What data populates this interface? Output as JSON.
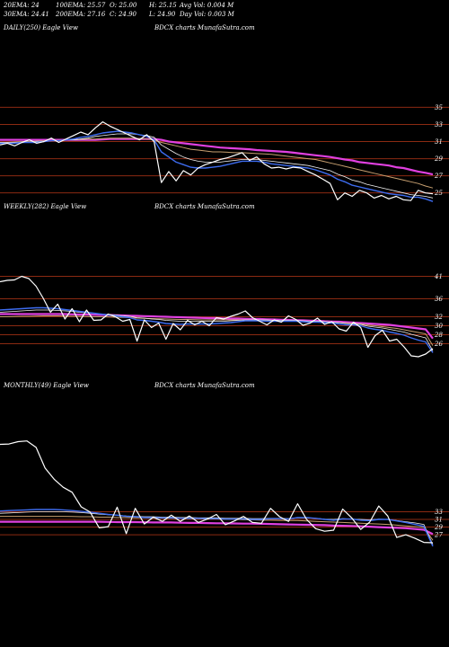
{
  "header": {
    "ema20": "20EMA: 24",
    "ema30": "30EMA: 24.41",
    "ema100": "100EMA: 25.57",
    "ema200": "200EMA: 27.16",
    "open": "O: 25.00",
    "close": "C: 24.90",
    "high": "H: 25.15",
    "low": "L: 24.90",
    "avg_vol": "Avg Vol: 0.004  M",
    "day_vol": "Day Vol: 0.003 M"
  },
  "colors": {
    "background": "#000000",
    "price": "#ffffff",
    "gridline": "#8b2a12",
    "ema_fast": "#3d6cf0",
    "ema_slow": "#e040e0",
    "ema_mid": "#f2f2f2",
    "ema_tan": "#c8a070"
  },
  "chart_data": [
    {
      "type": "line",
      "title": "DAILY(250) Eagle  View",
      "center_label": "BDCX  charts MunafaSutra.com",
      "y_ticks": [
        35,
        33,
        31,
        29,
        27,
        25
      ],
      "ylim": [
        23.6,
        36.2
      ],
      "grid": true,
      "series": [
        {
          "role": "price",
          "values": [
            30.6,
            30.8,
            30.5,
            30.9,
            31.2,
            30.8,
            31.0,
            31.4,
            30.9,
            31.3,
            31.7,
            32.1,
            31.8,
            32.6,
            33.3,
            32.8,
            32.4,
            32.0,
            31.6,
            31.2,
            31.8,
            31.0,
            26.2,
            27.5,
            26.4,
            27.6,
            27.1,
            27.9,
            28.3,
            28.6,
            28.9,
            29.1,
            29.4,
            29.7,
            28.8,
            29.2,
            28.4,
            27.9,
            28.0,
            27.8,
            28.0,
            27.9,
            27.5,
            27.1,
            26.6,
            26.1,
            24.2,
            25.0,
            24.6,
            25.3,
            25.0,
            24.4,
            24.7,
            24.3,
            24.6,
            24.2,
            24.1,
            25.3,
            25.0,
            24.9
          ]
        },
        {
          "role": "ema20",
          "values": [
            30.8,
            30.8,
            30.8,
            30.9,
            30.9,
            30.9,
            31.0,
            31.1,
            31.1,
            31.2,
            31.3,
            31.5,
            31.6,
            31.8,
            32.0,
            32.1,
            32.2,
            32.1,
            32.0,
            31.8,
            31.6,
            31.2,
            29.8,
            29.2,
            28.6,
            28.3,
            28.0,
            27.9,
            27.9,
            28.0,
            28.1,
            28.3,
            28.5,
            28.7,
            28.7,
            28.7,
            28.6,
            28.4,
            28.3,
            28.2,
            28.1,
            28.0,
            27.9,
            27.7,
            27.4,
            27.1,
            26.6,
            26.3,
            25.9,
            25.7,
            25.5,
            25.3,
            25.1,
            24.9,
            24.8,
            24.7,
            24.5,
            24.5,
            24.3,
            24.0
          ]
        },
        {
          "role": "ema30",
          "values": [
            30.9,
            30.9,
            30.9,
            30.9,
            30.9,
            31.0,
            31.0,
            31.1,
            31.1,
            31.2,
            31.2,
            31.3,
            31.4,
            31.6,
            31.7,
            31.8,
            31.9,
            31.9,
            31.9,
            31.8,
            31.7,
            31.5,
            30.6,
            30.1,
            29.6,
            29.2,
            28.9,
            28.7,
            28.6,
            28.6,
            28.6,
            28.7,
            28.8,
            28.9,
            28.9,
            28.9,
            28.8,
            28.7,
            28.6,
            28.5,
            28.4,
            28.3,
            28.2,
            28.0,
            27.8,
            27.6,
            27.2,
            26.9,
            26.5,
            26.3,
            26.0,
            25.8,
            25.6,
            25.4,
            25.2,
            25.0,
            24.8,
            24.7,
            24.6,
            24.41
          ]
        },
        {
          "role": "ema100",
          "values": [
            30.9,
            30.9,
            30.95,
            31.0,
            31.0,
            31.05,
            31.1,
            31.1,
            31.15,
            31.2,
            31.2,
            31.25,
            31.3,
            31.3,
            31.35,
            31.4,
            31.4,
            31.4,
            31.4,
            31.35,
            31.3,
            31.2,
            30.9,
            30.7,
            30.5,
            30.3,
            30.1,
            30.0,
            29.9,
            29.8,
            29.8,
            29.75,
            29.7,
            29.7,
            29.65,
            29.6,
            29.55,
            29.5,
            29.4,
            29.3,
            29.2,
            29.1,
            29.0,
            28.9,
            28.7,
            28.5,
            28.3,
            28.1,
            27.9,
            27.7,
            27.5,
            27.3,
            27.1,
            26.9,
            26.7,
            26.5,
            26.3,
            26.1,
            25.8,
            25.57
          ]
        },
        {
          "role": "ema200",
          "values": [
            31.2,
            31.2,
            31.2,
            31.2,
            31.2,
            31.2,
            31.2,
            31.2,
            31.2,
            31.2,
            31.2,
            31.2,
            31.2,
            31.2,
            31.25,
            31.3,
            31.3,
            31.3,
            31.3,
            31.3,
            31.3,
            31.3,
            31.2,
            31.0,
            30.9,
            30.8,
            30.7,
            30.6,
            30.5,
            30.4,
            30.3,
            30.25,
            30.2,
            30.15,
            30.1,
            30.0,
            29.95,
            29.9,
            29.85,
            29.8,
            29.7,
            29.6,
            29.5,
            29.4,
            29.3,
            29.2,
            29.05,
            28.9,
            28.8,
            28.6,
            28.5,
            28.4,
            28.3,
            28.2,
            28.0,
            27.9,
            27.7,
            27.5,
            27.35,
            27.16
          ]
        }
      ]
    },
    {
      "type": "line",
      "title": "WEEKLY(282) Eagle  View",
      "center_label": "BDCX  charts MunafaSutra.com",
      "y_ticks": [
        41,
        36,
        32,
        30,
        28,
        26
      ],
      "ylim": [
        21.5,
        44.5
      ],
      "grid": true,
      "series": [
        {
          "role": "price",
          "values": [
            39.8,
            40.1,
            40.2,
            41.0,
            40.5,
            38.8,
            36.1,
            33.0,
            34.8,
            31.5,
            33.8,
            30.9,
            33.5,
            31.2,
            31.3,
            32.6,
            32.0,
            31.0,
            31.4,
            26.6,
            31.3,
            29.6,
            30.6,
            27.0,
            30.5,
            29.1,
            31.2,
            30.2,
            31.0,
            30.0,
            31.8,
            31.5,
            32.1,
            32.6,
            33.3,
            31.8,
            31.0,
            30.2,
            31.3,
            30.8,
            32.2,
            31.4,
            30.1,
            30.6,
            31.7,
            30.3,
            30.9,
            29.3,
            28.8,
            30.8,
            29.6,
            25.2,
            27.8,
            29.0,
            26.6,
            27.0,
            25.3,
            23.3,
            23.1,
            23.7,
            24.9
          ]
        },
        {
          "role": "ema20",
          "values": [
            33.5,
            33.6,
            33.7,
            33.8,
            33.9,
            34.0,
            34.0,
            33.9,
            33.8,
            33.6,
            33.4,
            33.2,
            33.0,
            32.8,
            32.6,
            32.4,
            32.2,
            32.0,
            31.8,
            31.3,
            31.2,
            31.0,
            30.8,
            30.5,
            30.4,
            30.3,
            30.4,
            30.4,
            30.4,
            30.4,
            30.5,
            30.6,
            30.7,
            30.9,
            31.1,
            31.1,
            31.1,
            31.0,
            31.0,
            31.0,
            31.0,
            31.0,
            30.9,
            30.8,
            30.8,
            30.7,
            30.6,
            30.4,
            30.2,
            30.2,
            30.0,
            29.5,
            29.2,
            29.0,
            28.6,
            28.3,
            27.9,
            27.3,
            26.8,
            26.4,
            24.0
          ]
        },
        {
          "role": "ema30",
          "values": [
            33.0,
            33.1,
            33.2,
            33.3,
            33.4,
            33.5,
            33.5,
            33.5,
            33.4,
            33.3,
            33.2,
            33.0,
            32.9,
            32.8,
            32.6,
            32.5,
            32.4,
            32.2,
            32.1,
            31.8,
            31.7,
            31.5,
            31.4,
            31.2,
            31.1,
            31.0,
            31.0,
            31.0,
            31.0,
            31.0,
            31.0,
            31.0,
            31.1,
            31.2,
            31.3,
            31.3,
            31.3,
            31.3,
            31.2,
            31.2,
            31.2,
            31.2,
            31.1,
            31.0,
            31.0,
            30.9,
            30.8,
            30.7,
            30.5,
            30.4,
            30.3,
            29.9,
            29.7,
            29.5,
            29.2,
            28.9,
            28.6,
            28.1,
            27.7,
            27.3,
            24.41
          ]
        },
        {
          "role": "ema100",
          "values": [
            32.0,
            32.0,
            32.05,
            32.1,
            32.1,
            32.15,
            32.2,
            32.2,
            32.2,
            32.15,
            32.1,
            32.1,
            32.05,
            32.0,
            32.0,
            31.95,
            31.9,
            31.85,
            31.8,
            31.7,
            31.65,
            31.6,
            31.55,
            31.5,
            31.45,
            31.4,
            31.4,
            31.35,
            31.3,
            31.3,
            31.3,
            31.3,
            31.3,
            31.3,
            31.3,
            31.3,
            31.25,
            31.2,
            31.2,
            31.15,
            31.1,
            31.1,
            31.05,
            31.0,
            30.95,
            30.9,
            30.8,
            30.7,
            30.6,
            30.5,
            30.4,
            30.2,
            30.0,
            29.8,
            29.6,
            29.4,
            29.1,
            28.8,
            28.5,
            28.2,
            25.57
          ]
        },
        {
          "role": "ema200",
          "values": [
            32.6,
            32.6,
            32.6,
            32.6,
            32.6,
            32.6,
            32.6,
            32.6,
            32.6,
            32.6,
            32.55,
            32.5,
            32.5,
            32.45,
            32.4,
            32.4,
            32.35,
            32.3,
            32.25,
            32.2,
            32.15,
            32.1,
            32.05,
            32.0,
            31.95,
            31.9,
            31.85,
            31.8,
            31.75,
            31.7,
            31.7,
            31.65,
            31.6,
            31.6,
            31.55,
            31.5,
            31.5,
            31.45,
            31.4,
            31.35,
            31.3,
            31.25,
            31.2,
            31.15,
            31.1,
            31.0,
            30.95,
            30.9,
            30.8,
            30.7,
            30.6,
            30.5,
            30.4,
            30.3,
            30.2,
            30.0,
            29.8,
            29.6,
            29.4,
            29.2,
            27.16
          ]
        }
      ]
    },
    {
      "type": "line",
      "title": "MONTHLY(49) Eagle  View",
      "center_label": "BDCX  charts MunafaSutra.com",
      "y_ticks": [
        33,
        31,
        29,
        27
      ],
      "ylim": [
        23.5,
        54.0
      ],
      "grid": true,
      "series": [
        {
          "role": "price",
          "values": [
            50.6,
            50.7,
            51.3,
            51.5,
            49.8,
            44.4,
            41.5,
            39.4,
            38.1,
            34.3,
            32.9,
            28.8,
            29.1,
            34.2,
            27.3,
            33.9,
            29.8,
            31.6,
            30.5,
            32.1,
            30.5,
            31.9,
            30.2,
            31.1,
            32.3,
            29.6,
            30.6,
            31.8,
            30.2,
            30.0,
            33.9,
            31.7,
            30.5,
            35.1,
            31.0,
            28.6,
            27.9,
            28.2,
            33.7,
            31.4,
            28.4,
            30.3,
            34.5,
            31.9,
            26.3,
            27.0,
            26.1,
            25.0,
            24.9
          ]
        },
        {
          "role": "ema20",
          "values": [
            33.2,
            33.3,
            33.4,
            33.5,
            33.6,
            33.6,
            33.6,
            33.5,
            33.3,
            33.1,
            32.9,
            32.6,
            32.3,
            32.1,
            31.8,
            31.7,
            31.5,
            31.5,
            31.4,
            31.4,
            31.3,
            31.3,
            31.3,
            31.2,
            31.2,
            31.1,
            31.1,
            31.1,
            31.0,
            31.0,
            31.2,
            31.2,
            31.1,
            31.5,
            31.5,
            31.3,
            31.0,
            30.8,
            31.1,
            31.1,
            30.8,
            30.7,
            31.0,
            31.0,
            30.6,
            30.2,
            29.7,
            29.2,
            24.0
          ]
        },
        {
          "role": "ema30",
          "values": [
            32.6,
            32.7,
            32.8,
            32.9,
            33.0,
            33.0,
            33.0,
            33.0,
            32.9,
            32.8,
            32.6,
            32.4,
            32.2,
            32.1,
            31.9,
            31.8,
            31.7,
            31.7,
            31.6,
            31.6,
            31.5,
            31.5,
            31.4,
            31.4,
            31.4,
            31.3,
            31.3,
            31.3,
            31.2,
            31.2,
            31.3,
            31.3,
            31.2,
            31.4,
            31.4,
            31.3,
            31.1,
            31.0,
            31.2,
            31.1,
            31.0,
            30.9,
            31.1,
            31.0,
            30.7,
            30.4,
            30.1,
            29.7,
            24.41
          ]
        },
        {
          "role": "ema100",
          "values": [
            31.8,
            31.8,
            31.8,
            31.8,
            31.8,
            31.8,
            31.8,
            31.8,
            31.75,
            31.7,
            31.7,
            31.6,
            31.6,
            31.5,
            31.5,
            31.4,
            31.4,
            31.35,
            31.3,
            31.3,
            31.25,
            31.2,
            31.2,
            31.1,
            31.1,
            31.0,
            31.0,
            30.9,
            30.9,
            30.8,
            30.8,
            30.75,
            30.7,
            30.7,
            30.6,
            30.5,
            30.4,
            30.3,
            30.2,
            30.1,
            30.0,
            29.9,
            29.8,
            29.7,
            29.5,
            29.3,
            29.1,
            28.9,
            25.57
          ]
        },
        {
          "role": "ema200",
          "values": [
            30.4,
            30.4,
            30.4,
            30.4,
            30.4,
            30.4,
            30.4,
            30.4,
            30.4,
            30.4,
            30.4,
            30.4,
            30.35,
            30.3,
            30.3,
            30.3,
            30.25,
            30.2,
            30.2,
            30.2,
            30.15,
            30.1,
            30.1,
            30.05,
            30.0,
            30.0,
            29.95,
            29.9,
            29.9,
            29.85,
            29.8,
            29.75,
            29.7,
            29.65,
            29.6,
            29.55,
            29.5,
            29.4,
            29.35,
            29.3,
            29.2,
            29.1,
            29.0,
            28.9,
            28.8,
            28.7,
            28.5,
            28.3,
            27.16
          ]
        }
      ]
    }
  ]
}
